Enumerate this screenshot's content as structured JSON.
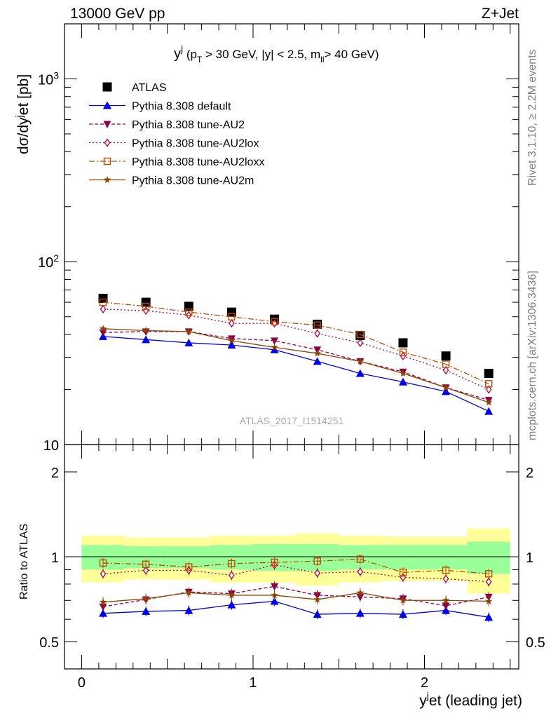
{
  "header": {
    "energy_label": "13000 GeV pp",
    "process_label": "Z+Jet",
    "rivet_label": "Rivet 3.1.10, ≥ 2.2M events",
    "mcplots_label": "mcplots.cern.ch [arXiv:1306.3436]",
    "analysis_label": "ATLAS_2017_I1514251"
  },
  "colors": {
    "data": "#000000",
    "default": "#0000e6",
    "au2": "#8b0045",
    "au2lox": "#b0003a",
    "au2loxx": "#c24a00",
    "au2m": "#8b4500",
    "band_inner": "#99ff99",
    "band_outer": "#ffff99"
  },
  "chart_data": {
    "type": "line",
    "title": "y^j (p_T > 30 GeV, |y| < 2.5, m_ll > 40 GeV)",
    "ylabel": "dσ/dy^jet [pb]",
    "xlabel": "y^jet (leading jet)",
    "ratio_ylabel": "Ratio to ATLAS",
    "xlim": [
      -0.1,
      2.55
    ],
    "ylim": [
      10,
      2000
    ],
    "ylog": true,
    "ratio_ylim": [
      0.4,
      2.5
    ],
    "ratio_ylog": true,
    "x_ticks": [
      "0",
      "1",
      "2"
    ],
    "y_ticks": [
      "10",
      "10²",
      "10³"
    ],
    "ratio_y_ticks": [
      "0.5",
      "1",
      "2"
    ],
    "x": [
      0.125,
      0.375,
      0.625,
      0.875,
      1.125,
      1.375,
      1.625,
      1.875,
      2.125,
      2.375
    ],
    "bin_edges": [
      0,
      0.25,
      0.5,
      0.75,
      1.0,
      1.25,
      1.5,
      1.75,
      2.0,
      2.25,
      2.5
    ],
    "band_inner": [
      0.1,
      0.09,
      0.09,
      0.1,
      0.11,
      0.11,
      0.1,
      0.1,
      0.1,
      0.13
    ],
    "band_outer": [
      0.19,
      0.17,
      0.17,
      0.19,
      0.19,
      0.21,
      0.19,
      0.18,
      0.18,
      0.26
    ],
    "series": [
      {
        "name": "ATLAS",
        "key": "data",
        "marker": "square",
        "dash": "",
        "connect": false,
        "values": [
          63,
          60,
          57,
          53,
          48.5,
          45.5,
          39.5,
          36,
          30.5,
          24.5
        ],
        "ratio": []
      },
      {
        "name": "Pythia 8.308 default",
        "key": "default",
        "marker": "triangle",
        "dash": "",
        "connect": true,
        "values": [
          39,
          37.5,
          36,
          35,
          33,
          28.5,
          24.5,
          22,
          19.5,
          15.2
        ],
        "ratio": [
          0.63,
          0.64,
          0.645,
          0.675,
          0.695,
          0.625,
          0.63,
          0.625,
          0.645,
          0.61
        ]
      },
      {
        "name": "Pythia 8.308 tune-AU2",
        "key": "au2",
        "marker": "triangle-down",
        "dash": "5,3",
        "connect": true,
        "values": [
          41,
          41.5,
          41.5,
          38,
          37,
          33,
          28.5,
          25,
          20.5,
          17.5
        ],
        "ratio": [
          0.665,
          0.705,
          0.75,
          0.74,
          0.785,
          0.73,
          0.72,
          0.71,
          0.67,
          0.72
        ]
      },
      {
        "name": "Pythia 8.308 tune-AU2lox",
        "key": "au2lox",
        "marker": "diamond",
        "dash": "2,3",
        "connect": true,
        "values": [
          55,
          54,
          51,
          46,
          46,
          40.5,
          36,
          30.5,
          25.5,
          20
        ],
        "ratio": [
          0.87,
          0.895,
          0.895,
          0.86,
          0.935,
          0.875,
          0.885,
          0.845,
          0.835,
          0.815
        ]
      },
      {
        "name": "Pythia 8.308 tune-AU2loxx",
        "key": "au2loxx",
        "marker": "open-square",
        "dash": "8,3,2,3",
        "connect": true,
        "values": [
          60,
          57,
          53,
          50,
          47,
          45,
          40,
          32,
          27.5,
          21.5
        ],
        "ratio": [
          0.95,
          0.94,
          0.92,
          0.945,
          0.955,
          0.965,
          0.98,
          0.88,
          0.895,
          0.87
        ]
      },
      {
        "name": "Pythia 8.308 tune-AU2m",
        "key": "au2m",
        "marker": "star",
        "dash": "",
        "connect": true,
        "values": [
          43,
          42,
          41.5,
          37,
          34,
          31.5,
          28.5,
          24.5,
          20.5,
          17
        ],
        "ratio": [
          0.69,
          0.71,
          0.745,
          0.73,
          0.73,
          0.705,
          0.745,
          0.7,
          0.7,
          0.695
        ]
      }
    ]
  }
}
